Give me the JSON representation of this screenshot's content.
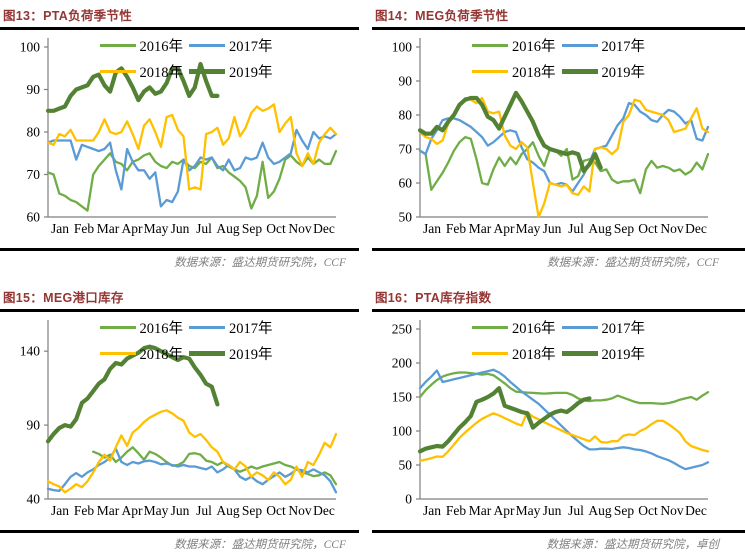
{
  "styles": {
    "title_color": "#943634",
    "source_color": "#808080",
    "axis_color": "#7f7f7f",
    "rule_color": "#000000",
    "series_colors": {
      "2016": "#70AD47",
      "2017": "#5B9BD5",
      "2018": "#FFC000",
      "2019": "#548235"
    }
  },
  "months": [
    "Jan",
    "Feb",
    "Mar",
    "Apr",
    "May",
    "Jun",
    "Jul",
    "Aug",
    "Sep",
    "Oct",
    "Nov",
    "Dec"
  ],
  "chart_data": [
    {
      "type": "line",
      "title": "图13：PTA负荷季节性",
      "source": "数据来源：盛达期货研究院，CCF",
      "x_labels": [
        "Jan",
        "Feb",
        "Mar",
        "Apr",
        "May",
        "Jun",
        "Jul",
        "Aug",
        "Sep",
        "Oct",
        "Nov",
        "Dec"
      ],
      "x_unit": "week-of-year",
      "n_points": 52,
      "ylim": [
        60,
        100
      ],
      "yticks": [
        60,
        70,
        80,
        90,
        100
      ],
      "grid": false,
      "legend_position": "top-center",
      "series": [
        {
          "name": "2016年",
          "color": "#70AD47",
          "width": 2.3,
          "values": [
            70.5,
            70,
            65.5,
            65,
            64,
            63.5,
            62.5,
            61.5,
            70,
            72,
            73.5,
            75,
            73,
            72.5,
            71,
            73,
            73.5,
            74.5,
            75,
            73,
            72,
            71.5,
            73,
            72.5,
            73.5,
            72,
            71.5,
            73,
            72.5,
            74,
            71.5,
            72,
            70.5,
            69.5,
            68.5,
            67,
            62,
            65,
            73,
            64.5,
            66,
            69,
            73.5,
            74.5,
            73,
            72,
            74,
            72.5,
            73.5,
            72.5,
            72.5,
            75.5
          ]
        },
        {
          "name": "2017年",
          "color": "#5B9BD5",
          "width": 2.3,
          "values": [
            77.5,
            78,
            78,
            78,
            78,
            73.5,
            77,
            76.5,
            76,
            75.5,
            76,
            77.5,
            71,
            66.5,
            76,
            73,
            71,
            71,
            69,
            70.5,
            62.5,
            64,
            63.5,
            66,
            73.5,
            71,
            72,
            74,
            73.5,
            74,
            72,
            71,
            73.5,
            71,
            71.5,
            74,
            73.5,
            74,
            77.5,
            74,
            72.5,
            73,
            74,
            75,
            80.5,
            78,
            76,
            80,
            78.5,
            79,
            78.5,
            79.5
          ]
        },
        {
          "name": "2018年",
          "color": "#FFC000",
          "width": 2.3,
          "values": [
            77.5,
            77,
            79.5,
            79,
            80.5,
            78,
            78,
            78,
            78,
            80,
            83,
            80,
            79.5,
            80,
            82.5,
            79.5,
            76,
            81.5,
            83,
            80,
            76.5,
            83.5,
            84,
            80.5,
            79,
            66.5,
            67,
            66.5,
            79.5,
            80,
            81,
            77,
            78.5,
            83.5,
            79,
            81,
            84.5,
            86,
            85,
            85.5,
            86.5,
            80,
            82,
            83.5,
            75,
            72,
            75,
            72.5,
            77.5,
            79.5,
            81,
            79.5
          ]
        },
        {
          "name": "2019年",
          "color": "#548235",
          "width": 4.2,
          "values": [
            85,
            85,
            85.5,
            86,
            88.5,
            90,
            90.5,
            91,
            93,
            93.5,
            91,
            89.5,
            94,
            95,
            93,
            90.5,
            87.5,
            89.5,
            90.5,
            89,
            89.5,
            91.5,
            95,
            95,
            92,
            88.5,
            90.5,
            96,
            92,
            88.5,
            88.5
          ]
        }
      ]
    },
    {
      "type": "line",
      "title": "图14：MEG负荷季节性",
      "source": "数据来源：盛达期货研究院，CCF",
      "x_labels": [
        "Jan",
        "Feb",
        "Mar",
        "Apr",
        "May",
        "Jun",
        "Jul",
        "Aug",
        "Sep",
        "Oct",
        "Nov",
        "Dec"
      ],
      "x_unit": "week-of-year",
      "n_points": 52,
      "ylim": [
        50,
        100
      ],
      "yticks": [
        50,
        60,
        70,
        80,
        90,
        100
      ],
      "grid": false,
      "legend_position": "top-center",
      "series": [
        {
          "name": "2016年",
          "color": "#70AD47",
          "width": 2.3,
          "values": [
            69.5,
            68.5,
            58,
            60.5,
            63,
            66,
            69.5,
            72,
            73.5,
            73,
            67,
            60,
            59.5,
            64,
            67.5,
            65,
            67.5,
            65.5,
            68.5,
            70,
            72,
            68,
            65,
            70,
            69.5,
            68,
            70,
            61,
            62,
            66.5,
            67,
            66,
            63.5,
            64,
            61,
            60,
            60.5,
            60.5,
            61,
            57,
            64,
            66.5,
            64.5,
            65,
            64.5,
            63.5,
            64,
            62.5,
            63.5,
            66,
            64,
            68.5
          ]
        },
        {
          "name": "2017年",
          "color": "#5B9BD5",
          "width": 2.3,
          "values": [
            69.5,
            68.5,
            73,
            75.5,
            78.5,
            79,
            79,
            78.5,
            77.5,
            76.5,
            75,
            73.5,
            71,
            72,
            73.5,
            75,
            75.5,
            75,
            70.5,
            67,
            66,
            64.5,
            63.5,
            60,
            59.5,
            60,
            59.5,
            57.5,
            60,
            62.5,
            66,
            70,
            70.5,
            71,
            74,
            77,
            79,
            83.5,
            83,
            81,
            80,
            78.5,
            78,
            80,
            81.5,
            81,
            79.5,
            77.5,
            78.5,
            73,
            72.5,
            76.5
          ]
        },
        {
          "name": "2018年",
          "color": "#FFC000",
          "width": 2.3,
          "values": [
            75,
            73.5,
            73,
            71.5,
            72.5,
            77.5,
            80,
            82.5,
            85,
            84.5,
            83.5,
            85,
            81,
            80.5,
            81,
            74,
            71,
            70,
            72,
            70.5,
            60,
            50,
            54,
            60,
            59.5,
            59,
            59.5,
            57,
            56.5,
            59,
            57.5,
            70,
            70.5,
            70,
            68.5,
            70,
            78,
            80,
            84.5,
            84,
            81.5,
            81,
            80.5,
            80,
            78.5,
            75,
            75.5,
            76,
            79,
            82,
            76,
            75
          ]
        },
        {
          "name": "2019年",
          "color": "#548235",
          "width": 4.2,
          "values": [
            75.5,
            74.5,
            74.5,
            76.5,
            75.5,
            78,
            80,
            83,
            84.5,
            85,
            85,
            83,
            79.5,
            78.5,
            76,
            79.5,
            83,
            86.5,
            84,
            81,
            78,
            74,
            71,
            70,
            69.5,
            69,
            68.5,
            69,
            68.5,
            63.5,
            65.5,
            68.5,
            64.5
          ]
        }
      ]
    },
    {
      "type": "line",
      "title": "图15：MEG港口库存",
      "source": "数据来源：盛达期货研究院，CCF",
      "x_labels": [
        "Jan",
        "Feb",
        "Mar",
        "Apr",
        "May",
        "Jun",
        "Jul",
        "Aug",
        "Sep",
        "Oct",
        "Nov",
        "Dec"
      ],
      "x_unit": "week-of-year",
      "n_points": 52,
      "ylim": [
        40,
        155
      ],
      "yticks": [
        40,
        90,
        140
      ],
      "grid": false,
      "legend_position": "top-center",
      "series": [
        {
          "name": "2016年",
          "color": "#70AD47",
          "width": 2.3,
          "values": [
            null,
            null,
            null,
            null,
            null,
            null,
            null,
            null,
            72,
            70.5,
            68,
            70,
            65,
            68,
            72,
            75,
            71,
            66.5,
            72,
            70.5,
            68,
            65,
            62.5,
            63,
            65,
            70.5,
            71,
            70,
            66,
            65,
            63,
            65,
            62,
            60,
            58.5,
            60,
            62,
            60.5,
            62,
            63,
            64,
            65,
            63,
            62,
            60,
            58,
            57,
            55.5,
            56,
            58,
            56,
            50
          ]
        },
        {
          "name": "2017年",
          "color": "#5B9BD5",
          "width": 2.3,
          "values": [
            47,
            46,
            45.5,
            50,
            55,
            57.5,
            55,
            58,
            60,
            63,
            65,
            68,
            74,
            65,
            63,
            65,
            64,
            65.5,
            66,
            65,
            63.5,
            64,
            63,
            62,
            63,
            62,
            62,
            61,
            60,
            62,
            58,
            60,
            63,
            60,
            55,
            53,
            55,
            52,
            50,
            53,
            55.5,
            58,
            55,
            57,
            60,
            59.5,
            58,
            60,
            58,
            56,
            52,
            44.5
          ]
        },
        {
          "name": "2018年",
          "color": "#FFC000",
          "width": 2.3,
          "values": [
            52,
            50,
            48.5,
            44.5,
            47,
            50,
            48,
            52,
            58,
            65,
            70,
            66,
            75,
            83,
            76,
            85,
            88,
            92,
            95,
            97,
            99,
            100,
            98,
            95,
            93,
            85,
            82,
            84,
            80,
            75,
            72,
            65,
            63,
            60,
            65,
            62,
            55,
            58,
            56,
            53,
            58,
            55,
            50,
            53,
            62,
            55,
            65,
            63,
            70,
            78,
            75,
            84
          ]
        },
        {
          "name": "2019年",
          "color": "#548235",
          "width": 4.2,
          "values": [
            79,
            84,
            88,
            90,
            89,
            94,
            105,
            108,
            113,
            118,
            121,
            128,
            132,
            131,
            135,
            137,
            139,
            142,
            143,
            142,
            140,
            138,
            136,
            134,
            136,
            135,
            129,
            124,
            118,
            116,
            104
          ]
        }
      ]
    },
    {
      "type": "line",
      "title": "图16：PTA库存指数",
      "source": "数据来源：盛达期货研究院，卓创",
      "x_labels": [
        "Jan",
        "Feb",
        "Mar",
        "Apr",
        "May",
        "Jun",
        "Jul",
        "Aug",
        "Sep",
        "Oct",
        "Nov",
        "Dec"
      ],
      "x_unit": "week-of-year",
      "n_points": 52,
      "ylim": [
        0,
        250
      ],
      "yticks": [
        0,
        50,
        100,
        150,
        200,
        250
      ],
      "grid": false,
      "legend_position": "top-center",
      "series": [
        {
          "name": "2016年",
          "color": "#70AD47",
          "width": 2.3,
          "values": [
            150,
            160,
            168,
            175,
            180,
            183,
            185,
            186,
            186,
            185,
            184,
            183,
            184,
            182,
            176,
            170,
            163,
            158,
            157,
            156.5,
            156,
            155.5,
            155,
            155.5,
            156,
            156,
            156,
            153,
            148,
            145,
            144,
            145,
            145,
            146,
            148,
            152,
            149,
            146,
            143,
            141,
            141,
            141,
            140.5,
            140,
            141,
            143,
            146,
            148,
            150,
            146,
            152,
            157
          ]
        },
        {
          "name": "2017年",
          "color": "#5B9BD5",
          "width": 2.3,
          "values": [
            163,
            172,
            180,
            189,
            172,
            174,
            176,
            178,
            180,
            182,
            184,
            186,
            188,
            190,
            186,
            180,
            172,
            165,
            158,
            152,
            146,
            140,
            132,
            124,
            116,
            108,
            100,
            92,
            85,
            78,
            73,
            73,
            74,
            74,
            73.5,
            75,
            76,
            75,
            73,
            72,
            70,
            67,
            63,
            60,
            57,
            53,
            48,
            44,
            46,
            48,
            50,
            54
          ]
        },
        {
          "name": "2018年",
          "color": "#FFC000",
          "width": 2.3,
          "values": [
            56,
            58,
            60,
            62.5,
            62,
            70,
            80,
            90,
            98,
            105,
            112,
            118,
            122,
            126,
            123,
            119,
            115,
            111,
            108,
            128,
            121,
            117,
            113,
            109,
            105,
            101,
            97,
            94,
            91,
            88,
            85,
            92,
            84,
            83,
            85,
            85,
            93,
            95,
            94,
            100,
            104,
            110,
            115,
            115,
            110,
            104,
            97,
            85,
            78,
            75,
            72,
            70
          ]
        },
        {
          "name": "2019年",
          "color": "#548235",
          "width": 4.2,
          "values": [
            70,
            74,
            76,
            78,
            77,
            85,
            95,
            105,
            113,
            122,
            143,
            146,
            150,
            155,
            163,
            137,
            134,
            131,
            128,
            126,
            105,
            112,
            118,
            124,
            128,
            130,
            128,
            134,
            141,
            146,
            148
          ]
        }
      ]
    }
  ]
}
